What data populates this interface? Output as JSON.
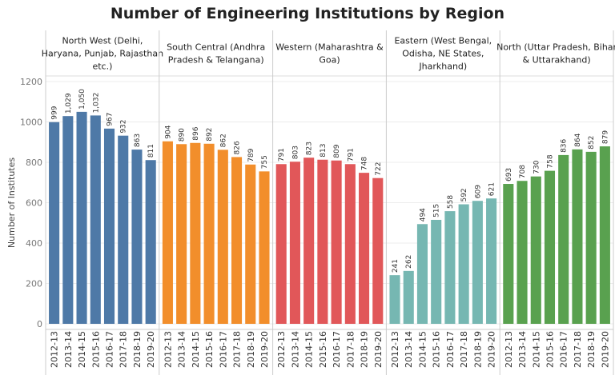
{
  "chart_data": {
    "type": "bar",
    "title": "Number of Engineering Institutions by Region",
    "ylabel": "Number of Institutes",
    "xlabel": "",
    "ylim": [
      0,
      1200
    ],
    "yticks": [
      0,
      200,
      400,
      600,
      800,
      1000,
      1200
    ],
    "grid": true,
    "categories": [
      "2012-13",
      "2013-14",
      "2014-15",
      "2015-16",
      "2016-17",
      "2017-18",
      "2018-19",
      "2019-20"
    ],
    "panels": [
      {
        "name": "North West (Delhi, Haryana, Punjab, Rajasthan etc.)",
        "header_lines": [
          "North West (Delhi,",
          "Haryana, Punjab, Rajasthan",
          "etc.)"
        ],
        "color": "#4e79a7",
        "values": [
          999,
          1029,
          1050,
          1032,
          967,
          932,
          863,
          811
        ],
        "labels": [
          "999",
          "1,029",
          "1,050",
          "1,032",
          "967",
          "932",
          "863",
          "811"
        ]
      },
      {
        "name": "South Central (Andhra Pradesh & Telangana)",
        "header_lines": [
          "South Central (Andhra",
          "Pradesh & Telangana)"
        ],
        "color": "#f28e2b",
        "values": [
          904,
          890,
          896,
          892,
          862,
          826,
          789,
          755
        ],
        "labels": [
          "904",
          "890",
          "896",
          "892",
          "862",
          "826",
          "789",
          "755"
        ]
      },
      {
        "name": "Western (Maharashtra & Goa)",
        "header_lines": [
          "Western (Maharashtra &",
          "Goa)"
        ],
        "color": "#e15759",
        "values": [
          791,
          803,
          823,
          813,
          809,
          791,
          748,
          722
        ],
        "labels": [
          "791",
          "803",
          "823",
          "813",
          "809",
          "791",
          "748",
          "722"
        ]
      },
      {
        "name": "Eastern (West Bengal, Odisha, NE States, Jharkhand)",
        "header_lines": [
          "Eastern (West Bengal,",
          "Odisha, NE States,",
          "Jharkhand)"
        ],
        "color": "#76b7b2",
        "values": [
          241,
          262,
          494,
          515,
          558,
          592,
          609,
          621
        ],
        "labels": [
          "241",
          "262",
          "494",
          "515",
          "558",
          "592",
          "609",
          "621"
        ]
      },
      {
        "name": "North (Uttar Pradesh, Bihar & Uttarakhand)",
        "header_lines": [
          "North (Uttar Pradesh, Bihar",
          "& Uttarakhand)"
        ],
        "color": "#59a14f",
        "values": [
          693,
          708,
          730,
          758,
          836,
          864,
          852,
          879
        ],
        "labels": [
          "693",
          "708",
          "730",
          "758",
          "836",
          "864",
          "852",
          "879"
        ]
      }
    ]
  }
}
